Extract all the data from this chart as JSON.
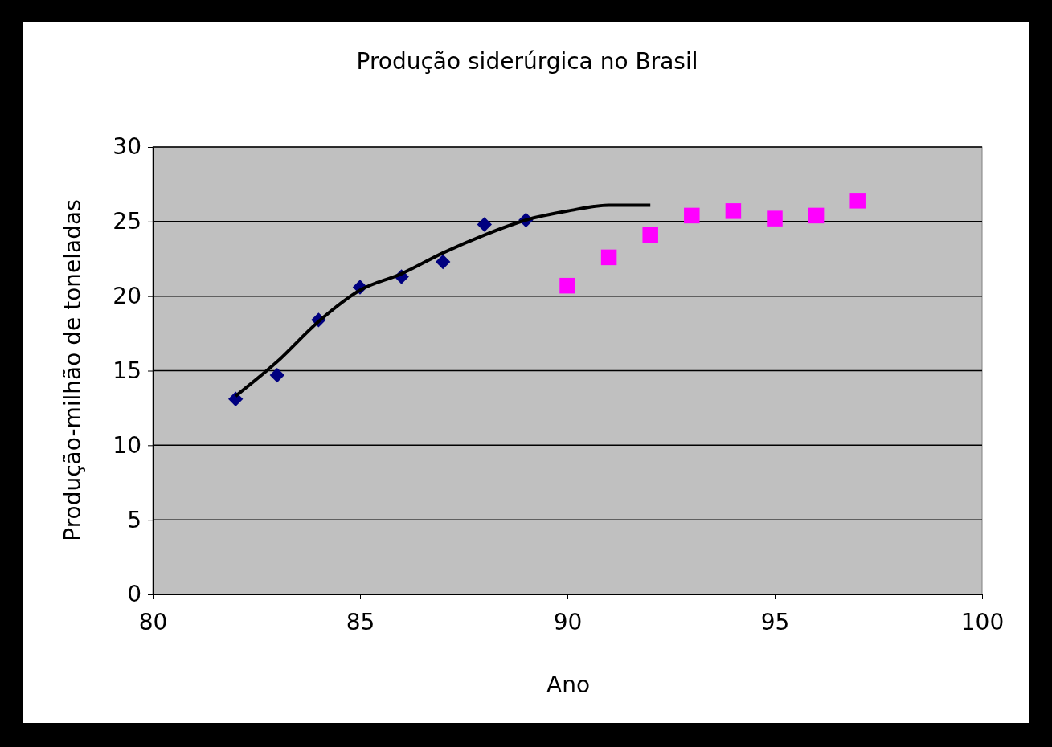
{
  "chart_data": {
    "type": "scatter",
    "title": "Produção siderúrgica no Brasil",
    "xlabel": "Ano",
    "ylabel": "Produção-milhão de toneladas",
    "xlim": [
      80,
      100
    ],
    "xticks": [
      80,
      85,
      90,
      95,
      100
    ],
    "ylim": [
      0,
      30
    ],
    "yticks": [
      0,
      5,
      10,
      15,
      20,
      25,
      30
    ],
    "grid": "y",
    "series": [
      {
        "marker": "diamond",
        "color": "#000080",
        "x": [
          82,
          83,
          84,
          85,
          86,
          87,
          88,
          89
        ],
        "values": [
          13.1,
          14.7,
          18.4,
          20.6,
          21.3,
          22.3,
          24.8,
          25.1
        ]
      },
      {
        "marker": "square",
        "color": "#ff00ff",
        "x": [
          90,
          91,
          92,
          93,
          94,
          95,
          96,
          97
        ],
        "values": [
          20.7,
          22.6,
          24.1,
          25.4,
          25.7,
          25.2,
          25.4,
          26.4
        ]
      },
      {
        "type": "line",
        "marker": "none",
        "line_style": "solid",
        "color": "#000000",
        "x": [
          82,
          83,
          84,
          85,
          86,
          87,
          88,
          89,
          90,
          91,
          92
        ],
        "values": [
          13.3,
          15.6,
          18.3,
          20.4,
          21.5,
          22.9,
          24.1,
          25.1,
          25.7,
          26.1,
          26.1
        ]
      }
    ]
  }
}
